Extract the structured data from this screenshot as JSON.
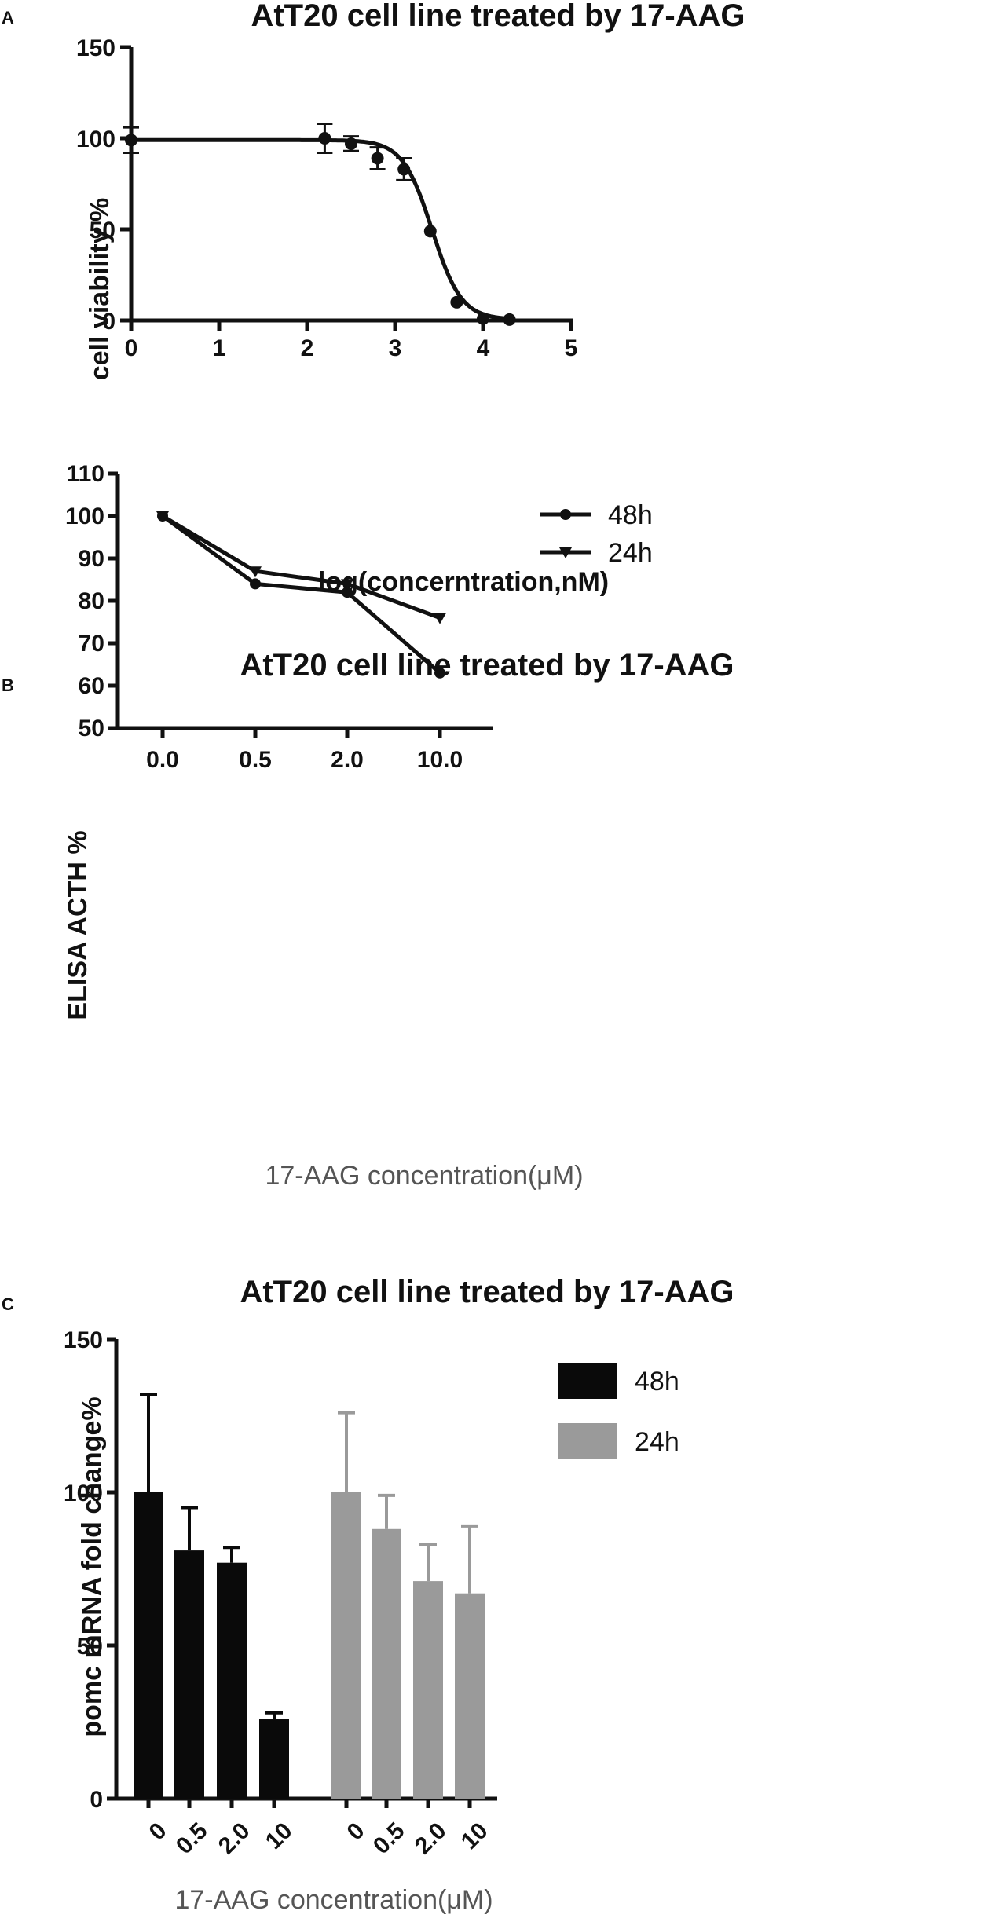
{
  "chart_data": [
    {
      "panel": "A",
      "type": "scatter",
      "title": "AtT20 cell line treated by 17-AAG",
      "xlabel": "log(concerntration,nM)",
      "ylabel": "cell viability %",
      "xlim": [
        0,
        5
      ],
      "ylim": [
        0,
        150
      ],
      "x_ticks": [
        "0",
        "1",
        "2",
        "3",
        "4",
        "5"
      ],
      "y_ticks": [
        "0",
        "50",
        "100",
        "150"
      ],
      "points": [
        {
          "x": 0.0,
          "y": 99,
          "err": 7
        },
        {
          "x": 2.2,
          "y": 100,
          "err": 8
        },
        {
          "x": 2.5,
          "y": 97,
          "err": 4
        },
        {
          "x": 2.8,
          "y": 89,
          "err": 6
        },
        {
          "x": 3.1,
          "y": 83,
          "err": 6
        },
        {
          "x": 3.4,
          "y": 49,
          "err": 1
        },
        {
          "x": 3.7,
          "y": 10,
          "err": 1
        },
        {
          "x": 4.0,
          "y": 1,
          "err": 0.5
        },
        {
          "x": 4.3,
          "y": 0.5,
          "err": 0.5
        }
      ],
      "fit": {
        "top": 99,
        "bottom": 0.5,
        "logIC50": 3.42,
        "hill": 2.6
      }
    },
    {
      "panel": "B",
      "type": "line",
      "title": "AtT20 cell line treated by 17-AAG",
      "xlabel": "17-AAG concentration(μM)",
      "ylabel": "ELISA ACTH %",
      "categories": [
        "0.0",
        "0.5",
        "2.0",
        "10.0"
      ],
      "y_ticks": [
        "50",
        "60",
        "70",
        "80",
        "90",
        "100",
        "110"
      ],
      "ylim": [
        50,
        110
      ],
      "legend_position": "top-right",
      "series": [
        {
          "name": "48h",
          "marker": "circle",
          "values": [
            100,
            84,
            82,
            63
          ]
        },
        {
          "name": "24h",
          "marker": "triangle-down",
          "values": [
            100,
            87,
            84,
            76
          ]
        }
      ]
    },
    {
      "panel": "C",
      "type": "bar",
      "title": "AtT20 cell line treated by 17-AAG",
      "xlabel": "17-AAG concentration(μM)",
      "ylabel": "pomc mRNA fold change%",
      "categories": [
        "0",
        "0.5",
        "2.0",
        "10"
      ],
      "y_ticks": [
        "0",
        "50",
        "100",
        "150"
      ],
      "ylim": [
        0,
        150
      ],
      "legend_position": "top-right",
      "series": [
        {
          "name": "48h",
          "color": "#0a0a0a",
          "values": [
            100,
            81,
            77,
            26
          ],
          "errors": [
            32,
            14,
            5,
            2
          ]
        },
        {
          "name": "24h",
          "color": "#9a9a9a",
          "values": [
            100,
            88,
            71,
            67
          ],
          "errors": [
            26,
            11,
            12,
            22
          ]
        }
      ]
    }
  ]
}
